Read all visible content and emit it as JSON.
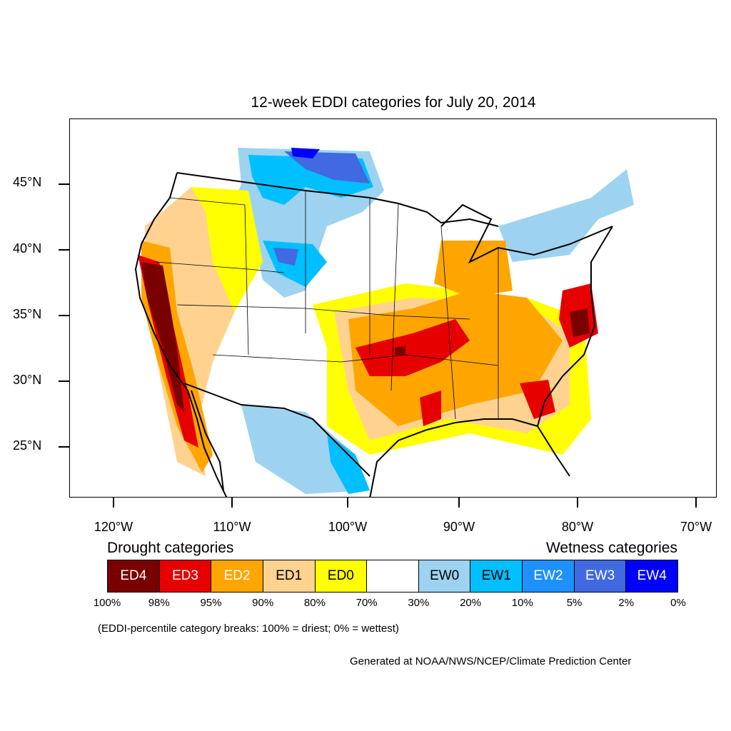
{
  "title": "12-week EDDI categories for July 20, 2014",
  "y_axis_labels": [
    "45°N",
    "40°N",
    "35°N",
    "30°N",
    "25°N"
  ],
  "x_axis_labels": [
    "120°W",
    "110°W",
    "100°W",
    "90°W",
    "80°W",
    "70°W"
  ],
  "legend": {
    "drought_heading": "Drought categories",
    "wetness_heading": "Wetness categories",
    "categories": [
      {
        "label": "ED4",
        "color": "#7a0000",
        "text_color": "#ffffff"
      },
      {
        "label": "ED3",
        "color": "#e60000",
        "text_color": "#ffffff"
      },
      {
        "label": "ED2",
        "color": "#ffa500",
        "text_color": "#ffffff"
      },
      {
        "label": "ED1",
        "color": "#ffd38f",
        "text_color": "#000000"
      },
      {
        "label": "ED0",
        "color": "#ffff00",
        "text_color": "#000000"
      },
      {
        "label": "",
        "color": "#ffffff",
        "text_color": "#000000"
      },
      {
        "label": "EW0",
        "color": "#9dd3f0",
        "text_color": "#000000"
      },
      {
        "label": "EW1",
        "color": "#00bfff",
        "text_color": "#000000"
      },
      {
        "label": "EW2",
        "color": "#1e90ff",
        "text_color": "#ffffff"
      },
      {
        "label": "EW3",
        "color": "#4169e1",
        "text_color": "#ffffff"
      },
      {
        "label": "EW4",
        "color": "#0000ff",
        "text_color": "#ffffff"
      }
    ],
    "breaks": [
      "100%",
      "98%",
      "95%",
      "90%",
      "80%",
      "70%",
      "30%",
      "20%",
      "10%",
      "5%",
      "2%",
      "0%"
    ]
  },
  "note": "(EDDI-percentile category breaks: 100% = driest; 0% = wettest)",
  "credit": "Generated at NOAA/NWS/NCEP/Climate Prediction Center"
}
